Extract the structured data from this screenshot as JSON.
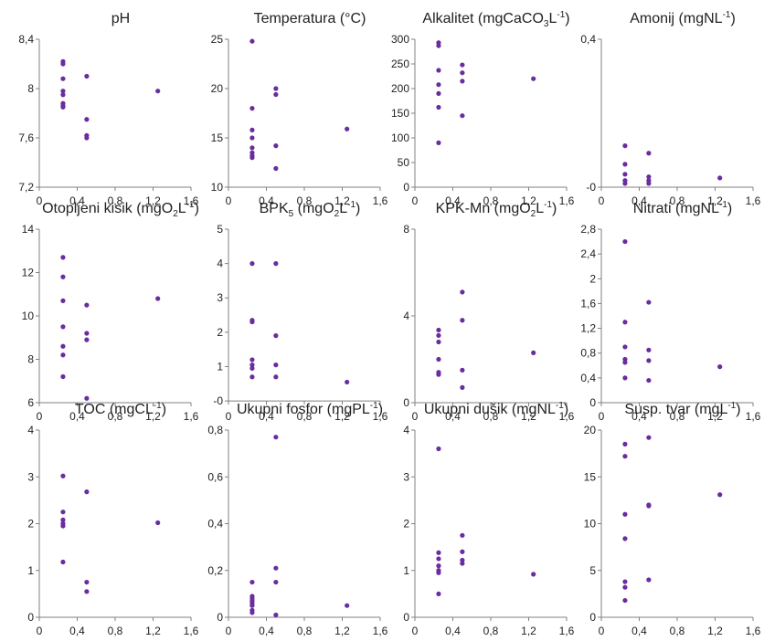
{
  "style": {
    "point_color": "#6a2c9e",
    "axis_color": "#808080"
  },
  "chart_data": [
    {
      "type": "scatter",
      "title": "pH",
      "xlim": [
        0,
        1.6
      ],
      "ylim": [
        7.2,
        8.4
      ],
      "xticks": [
        "0",
        "0,4",
        "0,8",
        "1,2",
        "1,6"
      ],
      "yticks": [
        "7,2",
        "7,6",
        "8",
        "8,4"
      ],
      "points": [
        [
          0.25,
          8.22
        ],
        [
          0.25,
          8.2
        ],
        [
          0.25,
          8.08
        ],
        [
          0.25,
          7.98
        ],
        [
          0.25,
          7.95
        ],
        [
          0.25,
          7.88
        ],
        [
          0.25,
          7.86
        ],
        [
          0.25,
          7.85
        ],
        [
          0.5,
          8.1
        ],
        [
          0.5,
          7.75
        ],
        [
          0.5,
          7.62
        ],
        [
          0.5,
          7.6
        ],
        [
          1.25,
          7.98
        ]
      ]
    },
    {
      "type": "scatter",
      "title": "Temperatura (°C)",
      "xlim": [
        0,
        1.6
      ],
      "ylim": [
        10,
        25
      ],
      "xticks": [
        "0",
        "0,4",
        "0,8",
        "1,2",
        "1,6"
      ],
      "yticks": [
        "10",
        "15",
        "20",
        "25"
      ],
      "points": [
        [
          0.25,
          24.8
        ],
        [
          0.25,
          18
        ],
        [
          0.25,
          15.8
        ],
        [
          0.25,
          15
        ],
        [
          0.25,
          14
        ],
        [
          0.25,
          13.5
        ],
        [
          0.25,
          13.2
        ],
        [
          0.25,
          13
        ],
        [
          0.5,
          20
        ],
        [
          0.5,
          19.4
        ],
        [
          0.5,
          14.2
        ],
        [
          0.5,
          11.9
        ],
        [
          1.25,
          15.9
        ]
      ]
    },
    {
      "type": "scatter",
      "title": "Alkalitet (mgCaCO₃L⁻¹)",
      "xlim": [
        0,
        1.6
      ],
      "ylim": [
        0,
        300
      ],
      "xticks": [
        "0",
        "0,4",
        "0,8",
        "1,2",
        "1,6"
      ],
      "yticks": [
        "0",
        "50",
        "100",
        "150",
        "200",
        "250",
        "300"
      ],
      "points": [
        [
          0.25,
          293
        ],
        [
          0.25,
          287
        ],
        [
          0.25,
          237
        ],
        [
          0.25,
          208
        ],
        [
          0.25,
          190
        ],
        [
          0.25,
          162
        ],
        [
          0.25,
          90
        ],
        [
          0.5,
          248
        ],
        [
          0.5,
          232
        ],
        [
          0.5,
          215
        ],
        [
          0.5,
          145
        ],
        [
          1.25,
          220
        ]
      ]
    },
    {
      "type": "scatter",
      "title": "Amonij (mgNL⁻¹)",
      "xlim": [
        0,
        1.6
      ],
      "ylim": [
        0,
        0.4
      ],
      "xticks": [
        "0",
        "0,4",
        "0,8",
        "1,2",
        "1,6"
      ],
      "yticks": [
        "-0",
        "0,4"
      ],
      "points": [
        [
          0.25,
          0.112
        ],
        [
          0.25,
          0.062
        ],
        [
          0.25,
          0.035
        ],
        [
          0.25,
          0.018
        ],
        [
          0.25,
          0.01
        ],
        [
          0.5,
          0.092
        ],
        [
          0.5,
          0.028
        ],
        [
          0.5,
          0.018
        ],
        [
          0.5,
          0.01
        ],
        [
          1.25,
          0.025
        ]
      ]
    },
    {
      "type": "scatter",
      "title": "Otopljeni kisik (mgO₂L⁻¹)",
      "xlim": [
        0,
        1.6
      ],
      "ylim": [
        6,
        14
      ],
      "xticks": [
        "0",
        "0,4",
        "0,8",
        "1,2",
        "1,6"
      ],
      "yticks": [
        "6",
        "8",
        "10",
        "12",
        "14"
      ],
      "points": [
        [
          0.25,
          12.7
        ],
        [
          0.25,
          11.8
        ],
        [
          0.25,
          10.7
        ],
        [
          0.25,
          9.5
        ],
        [
          0.25,
          8.6
        ],
        [
          0.25,
          8.2
        ],
        [
          0.25,
          7.2
        ],
        [
          0.5,
          10.5
        ],
        [
          0.5,
          9.2
        ],
        [
          0.5,
          8.9
        ],
        [
          0.5,
          6.2
        ],
        [
          1.25,
          10.8
        ]
      ]
    },
    {
      "type": "scatter",
      "title": "BPK₅ (mgO₂L⁻¹)",
      "xlim": [
        0,
        1.6
      ],
      "ylim": [
        -0.05,
        5
      ],
      "xticks": [
        "0",
        "0,4",
        "0,8",
        "1,2",
        "1,6"
      ],
      "yticks": [
        "-0",
        "1",
        "2",
        "3",
        "4",
        "5"
      ],
      "points": [
        [
          0.25,
          4
        ],
        [
          0.25,
          2.35
        ],
        [
          0.25,
          2.3
        ],
        [
          0.25,
          1.2
        ],
        [
          0.25,
          1.05
        ],
        [
          0.25,
          0.95
        ],
        [
          0.25,
          0.7
        ],
        [
          0.5,
          4
        ],
        [
          0.5,
          1.9
        ],
        [
          0.5,
          1.05
        ],
        [
          0.5,
          0.7
        ],
        [
          1.25,
          0.55
        ]
      ]
    },
    {
      "type": "scatter",
      "title": "KPK-Mn (mgO₂L⁻¹)",
      "xlim": [
        0,
        1.6
      ],
      "ylim": [
        0,
        8
      ],
      "xticks": [
        "0",
        "0,4",
        "0,8",
        "1,2",
        "1,6"
      ],
      "yticks": [
        "0",
        "4",
        "8"
      ],
      "points": [
        [
          0.25,
          3.35
        ],
        [
          0.25,
          3.1
        ],
        [
          0.25,
          2.8
        ],
        [
          0.25,
          2
        ],
        [
          0.25,
          1.4
        ],
        [
          0.25,
          1.3
        ],
        [
          0.5,
          5.1
        ],
        [
          0.5,
          3.8
        ],
        [
          0.5,
          1.5
        ],
        [
          0.5,
          0.7
        ],
        [
          1.25,
          2.3
        ]
      ]
    },
    {
      "type": "scatter",
      "title": "Nitrati (mgNL⁻¹)",
      "xlim": [
        0,
        1.6
      ],
      "ylim": [
        0,
        2.8
      ],
      "xticks": [
        "0",
        "0,4",
        "0,8",
        "1,2",
        "1,6"
      ],
      "yticks": [
        "0",
        "0,4",
        "0,8",
        "1,2",
        "1,6",
        "2",
        "2,4",
        "2,8"
      ],
      "points": [
        [
          0.25,
          2.6
        ],
        [
          0.25,
          1.3
        ],
        [
          0.25,
          0.9
        ],
        [
          0.25,
          0.7
        ],
        [
          0.25,
          0.65
        ],
        [
          0.25,
          0.4
        ],
        [
          0.5,
          1.62
        ],
        [
          0.5,
          0.85
        ],
        [
          0.5,
          0.68
        ],
        [
          0.5,
          0.36
        ],
        [
          1.25,
          0.58
        ]
      ]
    },
    {
      "type": "scatter",
      "title": "TOC (mgCL⁻¹)",
      "xlim": [
        0,
        1.6
      ],
      "ylim": [
        0,
        4
      ],
      "xticks": [
        "0",
        "0,4",
        "0,8",
        "1,2",
        "1,6"
      ],
      "yticks": [
        "0",
        "1",
        "2",
        "3",
        "4"
      ],
      "points": [
        [
          0.25,
          3.02
        ],
        [
          0.25,
          2.25
        ],
        [
          0.25,
          2.08
        ],
        [
          0.25,
          2
        ],
        [
          0.25,
          1.95
        ],
        [
          0.25,
          1.18
        ],
        [
          0.5,
          2.68
        ],
        [
          0.5,
          0.75
        ],
        [
          0.5,
          0.55
        ],
        [
          1.25,
          2.02
        ]
      ]
    },
    {
      "type": "scatter",
      "title": "Ukupni fosfor (mgPL⁻¹)",
      "xlim": [
        0,
        1.6
      ],
      "ylim": [
        0,
        0.8
      ],
      "xticks": [
        "0",
        "0,4",
        "0,8",
        "1,2",
        "1,6"
      ],
      "yticks": [
        "0",
        "0,2",
        "0,4",
        "0,6",
        "0,8"
      ],
      "points": [
        [
          0.25,
          0.15
        ],
        [
          0.25,
          0.09
        ],
        [
          0.25,
          0.08
        ],
        [
          0.25,
          0.07
        ],
        [
          0.25,
          0.06
        ],
        [
          0.25,
          0.05
        ],
        [
          0.25,
          0.03
        ],
        [
          0.25,
          0.02
        ],
        [
          0.5,
          0.77
        ],
        [
          0.5,
          0.21
        ],
        [
          0.5,
          0.15
        ],
        [
          0.5,
          0.01
        ],
        [
          1.25,
          0.05
        ]
      ]
    },
    {
      "type": "scatter",
      "title": "Ukupni dušik (mgNL⁻¹)",
      "xlim": [
        0,
        1.6
      ],
      "ylim": [
        0,
        4
      ],
      "xticks": [
        "0",
        "0,4",
        "0,8",
        "1,2",
        "1,6"
      ],
      "yticks": [
        "0",
        "1",
        "2",
        "3",
        "4"
      ],
      "points": [
        [
          0.25,
          3.6
        ],
        [
          0.25,
          1.38
        ],
        [
          0.25,
          1.25
        ],
        [
          0.25,
          1.1
        ],
        [
          0.25,
          1
        ],
        [
          0.25,
          0.95
        ],
        [
          0.25,
          0.5
        ],
        [
          0.5,
          1.75
        ],
        [
          0.5,
          1.4
        ],
        [
          0.5,
          1.22
        ],
        [
          0.5,
          1.15
        ],
        [
          1.25,
          0.92
        ]
      ]
    },
    {
      "type": "scatter",
      "title": "Susp. tvar (mgL⁻¹)",
      "xlim": [
        0,
        1.6
      ],
      "ylim": [
        0,
        20
      ],
      "xticks": [
        "0",
        "0,4",
        "0,8",
        "1,2",
        "1,6"
      ],
      "yticks": [
        "0",
        "5",
        "10",
        "15",
        "20"
      ],
      "points": [
        [
          0.25,
          18.5
        ],
        [
          0.25,
          17.2
        ],
        [
          0.25,
          11
        ],
        [
          0.25,
          8.4
        ],
        [
          0.25,
          3.8
        ],
        [
          0.25,
          3.2
        ],
        [
          0.25,
          1.8
        ],
        [
          0.5,
          19.2
        ],
        [
          0.5,
          12
        ],
        [
          0.5,
          11.9
        ],
        [
          0.5,
          4
        ],
        [
          1.25,
          13.1
        ]
      ]
    }
  ]
}
